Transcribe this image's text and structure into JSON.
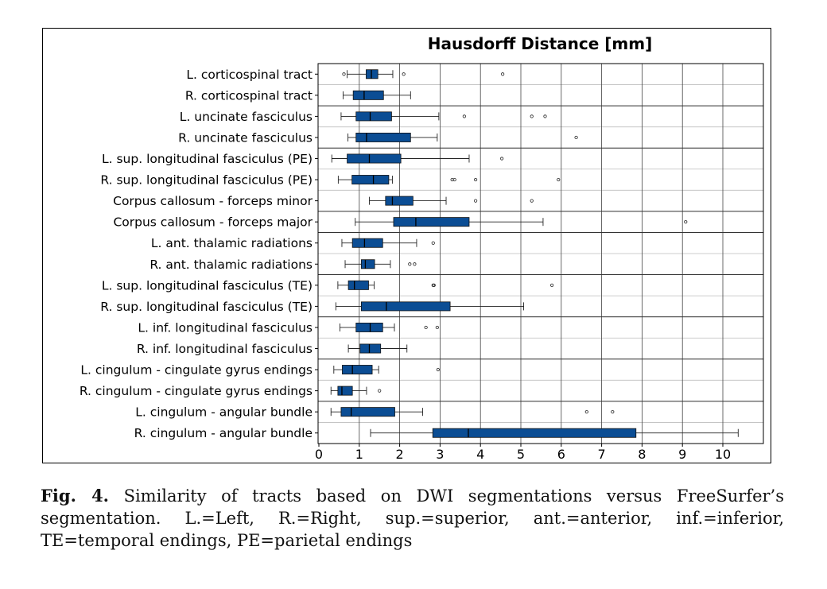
{
  "chart_data": {
    "type": "box",
    "title": "Hausdorff Distance [mm]",
    "xlabel": "",
    "ylabel": "",
    "xlim": [
      0,
      11
    ],
    "xticks": [
      0,
      1,
      2,
      3,
      4,
      5,
      6,
      7,
      8,
      9,
      10
    ],
    "grid": true,
    "box_color": "#0b4d94",
    "categories": [
      "L. corticospinal tract",
      "R. corticospinal tract",
      "L. uncinate fasciculus",
      "R. uncinate fasciculus",
      "L. sup. longitudinal fasciculus (PE)",
      "R. sup. longitudinal fasciculus (PE)",
      "Corpus callosum - forceps minor",
      "Corpus callosum - forceps major",
      "L. ant. thalamic radiations",
      "R. ant. thalamic radiations",
      "L. sup. longitudinal fasciculus (TE)",
      "R. sup. longitudinal fasciculus (TE)",
      "L. inf. longitudinal fasciculus",
      "R. inf. longitudinal fasciculus",
      "L. cingulum - cingulate gyrus endings",
      "R. cingulum - cingulate gyrus endings",
      "L. cingulum - angular bundle",
      "R. cingulum - angular bundle"
    ],
    "boxes": [
      {
        "whislo": 0.7,
        "q1": 1.17,
        "med": 1.3,
        "q3": 1.46,
        "whishi": 1.83,
        "fliers": [
          0.62,
          2.1,
          4.55
        ]
      },
      {
        "whislo": 0.6,
        "q1": 0.85,
        "med": 1.12,
        "q3": 1.6,
        "whishi": 2.27,
        "fliers": []
      },
      {
        "whislo": 0.55,
        "q1": 0.92,
        "med": 1.27,
        "q3": 1.8,
        "whishi": 2.97,
        "fliers": [
          3.6,
          5.27,
          5.6
        ]
      },
      {
        "whislo": 0.72,
        "q1": 0.92,
        "med": 1.18,
        "q3": 2.27,
        "whishi": 2.93,
        "fliers": [
          6.37
        ]
      },
      {
        "whislo": 0.32,
        "q1": 0.7,
        "med": 1.25,
        "q3": 2.03,
        "whishi": 3.72,
        "fliers": [
          4.53
        ]
      },
      {
        "whislo": 0.48,
        "q1": 0.82,
        "med": 1.35,
        "q3": 1.73,
        "whishi": 1.82,
        "fliers": [
          3.3,
          3.36,
          3.88,
          5.93
        ]
      },
      {
        "whislo": 1.25,
        "q1": 1.65,
        "med": 1.82,
        "q3": 2.33,
        "whishi": 3.15,
        "fliers": [
          3.88,
          5.27
        ]
      },
      {
        "whislo": 0.9,
        "q1": 1.85,
        "med": 2.4,
        "q3": 3.72,
        "whishi": 5.55,
        "fliers": [
          9.08
        ]
      },
      {
        "whislo": 0.57,
        "q1": 0.83,
        "med": 1.13,
        "q3": 1.58,
        "whishi": 2.42,
        "fliers": [
          2.83
        ]
      },
      {
        "whislo": 0.65,
        "q1": 1.05,
        "med": 1.15,
        "q3": 1.38,
        "whishi": 1.77,
        "fliers": [
          2.25,
          2.37
        ]
      },
      {
        "whislo": 0.47,
        "q1": 0.73,
        "med": 0.88,
        "q3": 1.23,
        "whishi": 1.37,
        "fliers": [
          2.83,
          2.85,
          5.77
        ]
      },
      {
        "whislo": 0.42,
        "q1": 1.05,
        "med": 1.67,
        "q3": 3.25,
        "whishi": 5.07,
        "fliers": []
      },
      {
        "whislo": 0.52,
        "q1": 0.92,
        "med": 1.27,
        "q3": 1.58,
        "whishi": 1.87,
        "fliers": [
          2.65,
          2.93
        ]
      },
      {
        "whislo": 0.73,
        "q1": 1.02,
        "med": 1.25,
        "q3": 1.53,
        "whishi": 2.18,
        "fliers": []
      },
      {
        "whislo": 0.37,
        "q1": 0.58,
        "med": 0.83,
        "q3": 1.32,
        "whishi": 1.48,
        "fliers": [
          2.95
        ]
      },
      {
        "whislo": 0.3,
        "q1": 0.47,
        "med": 0.57,
        "q3": 0.83,
        "whishi": 1.18,
        "fliers": [
          1.5
        ]
      },
      {
        "whislo": 0.3,
        "q1": 0.55,
        "med": 0.8,
        "q3": 1.88,
        "whishi": 2.57,
        "fliers": [
          6.63,
          7.27
        ]
      },
      {
        "whislo": 1.28,
        "q1": 2.82,
        "med": 3.7,
        "q3": 7.85,
        "whishi": 10.38,
        "fliers": []
      }
    ],
    "group_separators_after": [
      1,
      3,
      6,
      7,
      9,
      11,
      13,
      15
    ]
  },
  "caption": {
    "label": "Fig. 4.",
    "text": "Similarity of tracts based on DWI segmentations versus FreeSurfer’s segmentation. L.=Left, R.=Right, sup.=superior, ant.=anterior, inf.=inferior, TE=temporal endings, PE=parietal endings"
  }
}
